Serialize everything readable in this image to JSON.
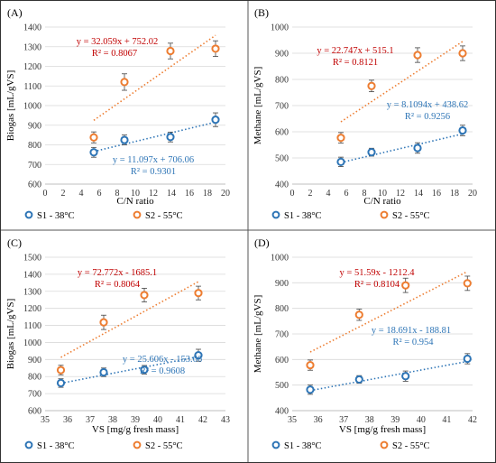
{
  "colors": {
    "s1": "#2E75B6",
    "s2": "#ED7D31",
    "red_text": "#C00000",
    "blue_text": "#2E75B6"
  },
  "chart_data": [
    {
      "type": "scatter",
      "panel_label": "(A)",
      "xlabel": "C/N ratio",
      "ylabel": "Biogas [mL/gVS]",
      "xlim": [
        0,
        20
      ],
      "ylim": [
        600,
        1400
      ],
      "xticks": [
        0,
        2,
        4,
        6,
        8,
        10,
        12,
        14,
        16,
        18,
        20
      ],
      "yticks": [
        600,
        700,
        800,
        900,
        1000,
        1100,
        1200,
        1300,
        1400
      ],
      "grid": true,
      "legend": "bottom",
      "series": [
        {
          "name": "S1 - 38°C",
          "color": "#2E75B6",
          "x": [
            5.4,
            8.8,
            13.9,
            18.9
          ],
          "y": [
            762,
            825,
            840,
            928
          ],
          "err": [
            25,
            25,
            25,
            35
          ],
          "trend": {
            "equation": "y = 11.097x + 706.06",
            "r2": "R² = 0.9301",
            "slope": 11.097,
            "intercept": 706.06
          }
        },
        {
          "name": "S2 - 55°C",
          "color": "#ED7D31",
          "x": [
            5.4,
            8.8,
            13.9,
            18.9
          ],
          "y": [
            838,
            1120,
            1278,
            1290
          ],
          "err": [
            28,
            42,
            40,
            40
          ],
          "trend": {
            "equation": "y = 32.059x + 752.02",
            "r2": "R² = 0.8067",
            "slope": 32.059,
            "intercept": 752.02
          }
        }
      ]
    },
    {
      "type": "scatter",
      "panel_label": "(B)",
      "xlabel": "C/N ratio",
      "ylabel": "Methane [mL/gVS]",
      "xlim": [
        0,
        20
      ],
      "ylim": [
        400,
        1000
      ],
      "xticks": [
        0,
        2,
        4,
        6,
        8,
        10,
        12,
        14,
        16,
        18,
        20
      ],
      "yticks": [
        400,
        500,
        600,
        700,
        800,
        900,
        1000
      ],
      "grid": true,
      "legend": "bottom",
      "series": [
        {
          "name": "S1 - 38°C",
          "color": "#2E75B6",
          "x": [
            5.4,
            8.8,
            13.9,
            18.9
          ],
          "y": [
            485,
            522,
            538,
            605
          ],
          "err": [
            18,
            15,
            20,
            20
          ],
          "trend": {
            "equation": "y = 8.1094x + 438.62",
            "r2": "R² = 0.9256",
            "slope": 8.1094,
            "intercept": 438.62
          }
        },
        {
          "name": "S2 - 55°C",
          "color": "#ED7D31",
          "x": [
            5.4,
            8.8,
            13.9,
            18.9
          ],
          "y": [
            577,
            775,
            893,
            900
          ],
          "err": [
            20,
            22,
            28,
            28
          ],
          "trend": {
            "equation": "y = 22.747x + 515.1",
            "r2": "R² = 0.8121",
            "slope": 22.747,
            "intercept": 515.1
          }
        }
      ]
    },
    {
      "type": "scatter",
      "panel_label": "(C)",
      "xlabel": "VS [mg/g fresh mass]",
      "ylabel": "Biogas [mL/gVS]",
      "xlim": [
        35,
        43
      ],
      "ylim": [
        600,
        1500
      ],
      "xticks": [
        35,
        36,
        37,
        38,
        39,
        40,
        41,
        42,
        43
      ],
      "yticks": [
        600,
        700,
        800,
        900,
        1000,
        1100,
        1200,
        1300,
        1400,
        1500
      ],
      "grid": true,
      "legend": "bottom",
      "series": [
        {
          "name": "S1 - 38°C",
          "color": "#2E75B6",
          "x": [
            35.7,
            37.6,
            39.4,
            41.8
          ],
          "y": [
            762,
            825,
            840,
            925
          ],
          "err": [
            25,
            25,
            25,
            35
          ],
          "trend": {
            "equation": "y = 25.606x - 153.66",
            "r2": "R² = 0.9608",
            "slope": 25.606,
            "intercept": -153.66
          }
        },
        {
          "name": "S2 - 55°C",
          "color": "#ED7D31",
          "x": [
            35.7,
            37.6,
            39.4,
            41.8
          ],
          "y": [
            838,
            1118,
            1278,
            1290
          ],
          "err": [
            28,
            42,
            40,
            40
          ],
          "trend": {
            "equation": "y = 72.772x - 1685.1",
            "r2": "R² = 0.8064",
            "slope": 72.772,
            "intercept": -1685.1
          }
        }
      ]
    },
    {
      "type": "scatter",
      "panel_label": "(D)",
      "xlabel": "VS [mg/g fresh mass]",
      "ylabel": "Methane [mL/gVS]",
      "xlim": [
        35,
        42
      ],
      "ylim": [
        400,
        1000
      ],
      "xticks": [
        35,
        36,
        37,
        38,
        39,
        40,
        41,
        42
      ],
      "yticks": [
        400,
        500,
        600,
        700,
        800,
        900,
        1000
      ],
      "grid": true,
      "legend": "bottom",
      "series": [
        {
          "name": "S1 - 38°C",
          "color": "#2E75B6",
          "x": [
            35.7,
            37.6,
            39.4,
            41.8
          ],
          "y": [
            482,
            522,
            535,
            603
          ],
          "err": [
            18,
            15,
            20,
            20
          ],
          "trend": {
            "equation": "y = 18.691x - 188.81",
            "r2": "R² = 0.954",
            "slope": 18.691,
            "intercept": -188.81
          }
        },
        {
          "name": "S2 - 55°C",
          "color": "#ED7D31",
          "x": [
            35.7,
            37.6,
            39.4,
            41.8
          ],
          "y": [
            578,
            775,
            890,
            898
          ],
          "err": [
            20,
            22,
            28,
            28
          ],
          "trend": {
            "equation": "y = 51.59x - 1212.4",
            "r2": "R² = 0.8104",
            "slope": 51.59,
            "intercept": -1212.4
          }
        }
      ]
    }
  ]
}
